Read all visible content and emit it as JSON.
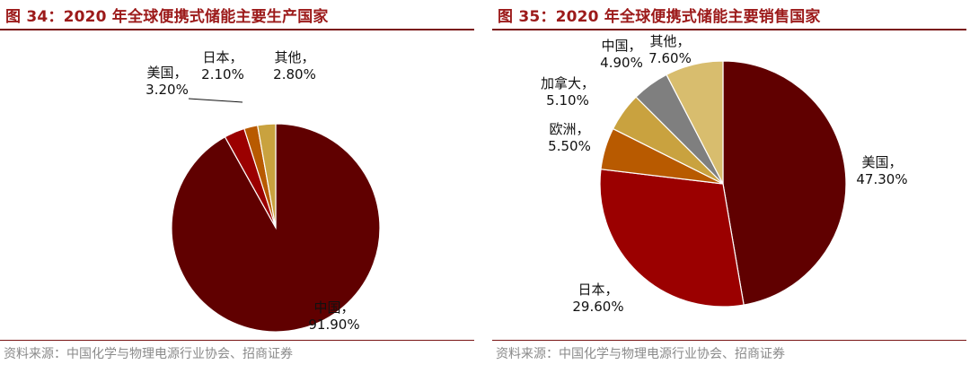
{
  "chart_data": [
    {
      "type": "pie",
      "title": "图 34：2020 年全球便携式储能主要生产国家",
      "source": "资料来源：中国化学与物理电源行业协会、招商证券",
      "slices": [
        {
          "name": "中国",
          "value": 91.9,
          "display": "91.90%",
          "color": "#600000"
        },
        {
          "name": "美国",
          "value": 3.2,
          "display": "3.20%",
          "color": "#9b0000"
        },
        {
          "name": "日本",
          "value": 2.1,
          "display": "2.10%",
          "color": "#b85a00"
        },
        {
          "name": "其他",
          "value": 2.8,
          "display": "2.80%",
          "color": "#c9a23f"
        }
      ]
    },
    {
      "type": "pie",
      "title": "图 35：2020 年全球便携式储能主要销售国家",
      "source": "资料来源：中国化学与物理电源行业协会、招商证券",
      "slices": [
        {
          "name": "美国",
          "value": 47.3,
          "display": "47.30%",
          "color": "#600000"
        },
        {
          "name": "日本",
          "value": 29.6,
          "display": "29.60%",
          "color": "#9b0000"
        },
        {
          "name": "欧洲",
          "value": 5.5,
          "display": "5.50%",
          "color": "#b85a00"
        },
        {
          "name": "加拿大",
          "value": 5.1,
          "display": "5.10%",
          "color": "#c9a23f"
        },
        {
          "name": "中国",
          "value": 4.9,
          "display": "4.90%",
          "color": "#7f7f7f"
        },
        {
          "name": "其他",
          "value": 7.6,
          "display": "7.60%",
          "color": "#d8bd6e"
        }
      ]
    }
  ]
}
